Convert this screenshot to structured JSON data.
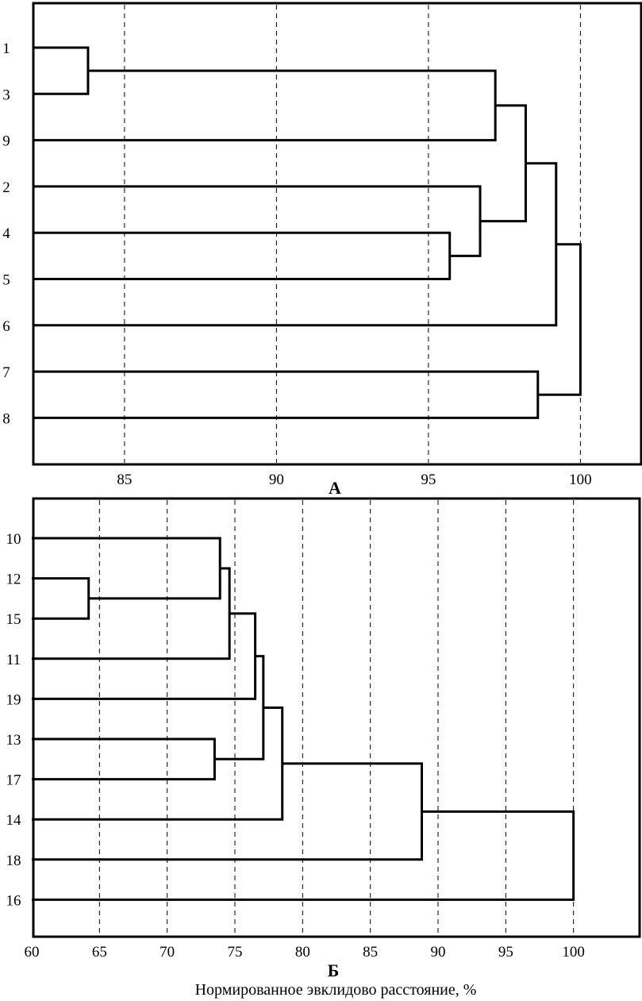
{
  "xlabel": "Нормированное эвклидово расстояние, %",
  "chart_data": [
    {
      "type": "dendrogram",
      "panel_label": "А",
      "xlim": [
        82,
        102
      ],
      "xticks": [
        85,
        90,
        95,
        100
      ],
      "grid": "vertical dashed",
      "leaves": [
        "1",
        "3",
        "9",
        "2",
        "4",
        "5",
        "6",
        "7",
        "8"
      ],
      "merges": [
        {
          "a": "1",
          "b": "3",
          "height": 83.8
        },
        {
          "a": "1-3",
          "b": "9",
          "height": 97.2
        },
        {
          "a": "4",
          "b": "5",
          "height": 95.7
        },
        {
          "a": "2",
          "b": "4-5",
          "height": 96.7
        },
        {
          "a": "1-3-9",
          "b": "2-4-5",
          "height": 98.2
        },
        {
          "a": "1-3-9-2-4-5",
          "b": "6",
          "height": 99.2
        },
        {
          "a": "7",
          "b": "8",
          "height": 98.6
        },
        {
          "a": "1-3-9-2-4-5-6",
          "b": "7-8",
          "height": 100
        }
      ]
    },
    {
      "type": "dendrogram",
      "panel_label": "Б",
      "xlim": [
        60,
        105
      ],
      "xticks": [
        60,
        65,
        70,
        75,
        80,
        85,
        90,
        95,
        100
      ],
      "grid": "vertical dashed",
      "leaves": [
        "10",
        "12",
        "15",
        "11",
        "19",
        "13",
        "17",
        "14",
        "18",
        "16"
      ],
      "merges": [
        {
          "a": "12",
          "b": "15",
          "height": 64.2
        },
        {
          "a": "10",
          "b": "12-15",
          "height": 73.9
        },
        {
          "a": "10-12-15",
          "b": "11",
          "height": 74.6
        },
        {
          "a": "10-12-15-11",
          "b": "19",
          "height": 76.5
        },
        {
          "a": "13",
          "b": "17",
          "height": 73.5
        },
        {
          "a": "10-12-15-11-19",
          "b": "13-17",
          "height": 77.1
        },
        {
          "a": "10-12-15-11-19-13-17",
          "b": "14",
          "height": 78.5
        },
        {
          "a": "10-12-15-11-19-13-17-14",
          "b": "18",
          "height": 88.8
        },
        {
          "a": "10-12-15-11-19-13-17-14-18",
          "b": "16",
          "height": 100
        }
      ]
    }
  ]
}
